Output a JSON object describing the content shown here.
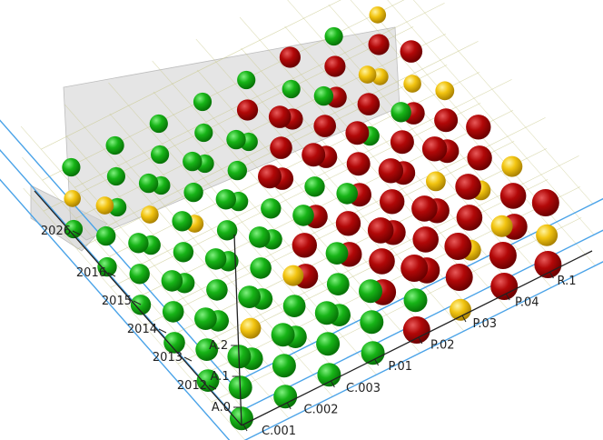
{
  "chart_data": {
    "type": "scatter",
    "title": "",
    "z_labels": [
      "A.0",
      "A.1",
      "A.2"
    ],
    "x_labels": [
      "C.001",
      "C.002",
      "C.003",
      "P.01",
      "P.02",
      "P.03",
      "P.04",
      "R.1"
    ],
    "y_labels": [
      "2012",
      "2013",
      "2014",
      "2015",
      "2016",
      "2026"
    ],
    "colors": {
      "green": "#15b015",
      "red": "#b00808",
      "yellow": "#f2c410",
      "axis": "#4aa3e8",
      "panel": "#dcdcdc"
    },
    "layers": [
      {
        "level": "A.0",
        "rows": [
          [
            "G",
            "G",
            "G",
            "G",
            "R",
            "Y",
            "R",
            "R"
          ],
          [
            "G",
            "G",
            "G",
            "G",
            "R",
            "R",
            "Y",
            "R"
          ],
          [
            "G",
            "G",
            "G",
            "R",
            "R",
            "R",
            "R",
            "Y"
          ],
          [
            "G",
            "G",
            "G",
            "G",
            "R",
            "R",
            "R",
            "R"
          ],
          [
            "G",
            "G",
            "Y",
            "G",
            "R",
            "R",
            "G",
            "R"
          ],
          [
            "G",
            "G",
            "G",
            "G",
            "G",
            "R",
            "R",
            "Y"
          ]
        ]
      },
      {
        "level": "A.1",
        "rows": [
          [
            "G",
            "G",
            "G",
            "G",
            "G",
            "R",
            "R",
            "Y"
          ],
          [
            "G",
            "Y",
            "G",
            "G",
            "R",
            "R",
            "R",
            "R"
          ],
          [
            "G",
            "G",
            "G",
            "R",
            "R",
            "R",
            "Y",
            "R"
          ],
          [
            "G",
            "G",
            "G",
            "G",
            "G",
            "R",
            "R",
            "R"
          ],
          [
            "G",
            "Y",
            "G",
            "G",
            "R",
            "R",
            "R",
            "Y"
          ],
          [
            "Y",
            "G",
            "G",
            "G",
            "R",
            "G",
            "R",
            "R"
          ]
        ]
      },
      {
        "level": "A.2",
        "rows": [
          [
            "G",
            "G",
            "G",
            "G",
            "R",
            "R",
            "Y",
            "R"
          ],
          [
            "G",
            "G",
            "Y",
            "G",
            "R",
            "R",
            "R",
            "Y"
          ],
          [
            "G",
            "G",
            "G",
            "G",
            "G",
            "R",
            "R",
            "R"
          ],
          [
            "G",
            "G",
            "G",
            "R",
            "R",
            "R",
            "G",
            "Y"
          ],
          [
            "Y",
            "G",
            "G",
            "G",
            "R",
            "G",
            "Y",
            "R"
          ],
          [
            "G",
            "G",
            "G",
            "G",
            "G",
            "R",
            "G",
            "Y"
          ]
        ]
      }
    ]
  }
}
